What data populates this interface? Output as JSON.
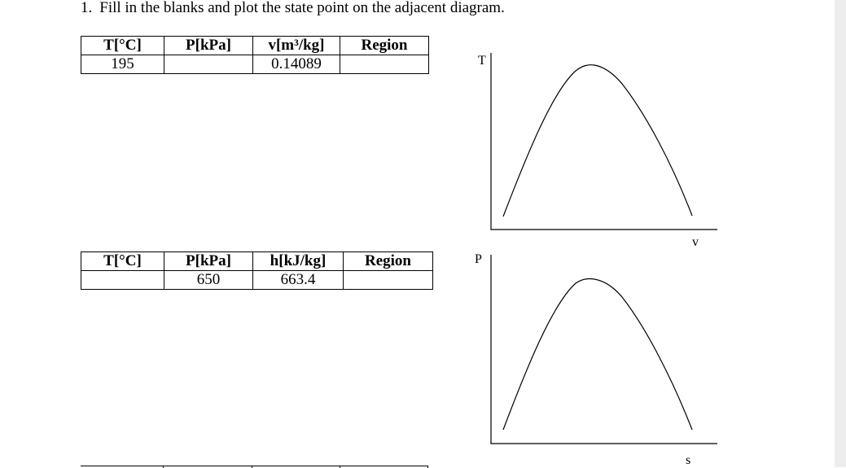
{
  "question": {
    "number": "1.",
    "text": "Fill in the blanks and plot the state point on the adjacent diagram."
  },
  "table1": {
    "headers": [
      "T[°C]",
      "P[kPa]",
      "v[m³/kg]",
      "Region"
    ],
    "row": [
      "195",
      "",
      "0.14089",
      ""
    ]
  },
  "table2": {
    "headers": [
      "T[°C]",
      "P[kPa]",
      "h[kJ/kg]",
      "Region"
    ],
    "row": [
      "",
      "650",
      "663.4",
      ""
    ]
  },
  "diagram_tv": {
    "y_axis_label": "T",
    "x_axis_label": "v"
  },
  "diagram_ps": {
    "y_axis_label": "P",
    "x_axis_label": "s"
  }
}
